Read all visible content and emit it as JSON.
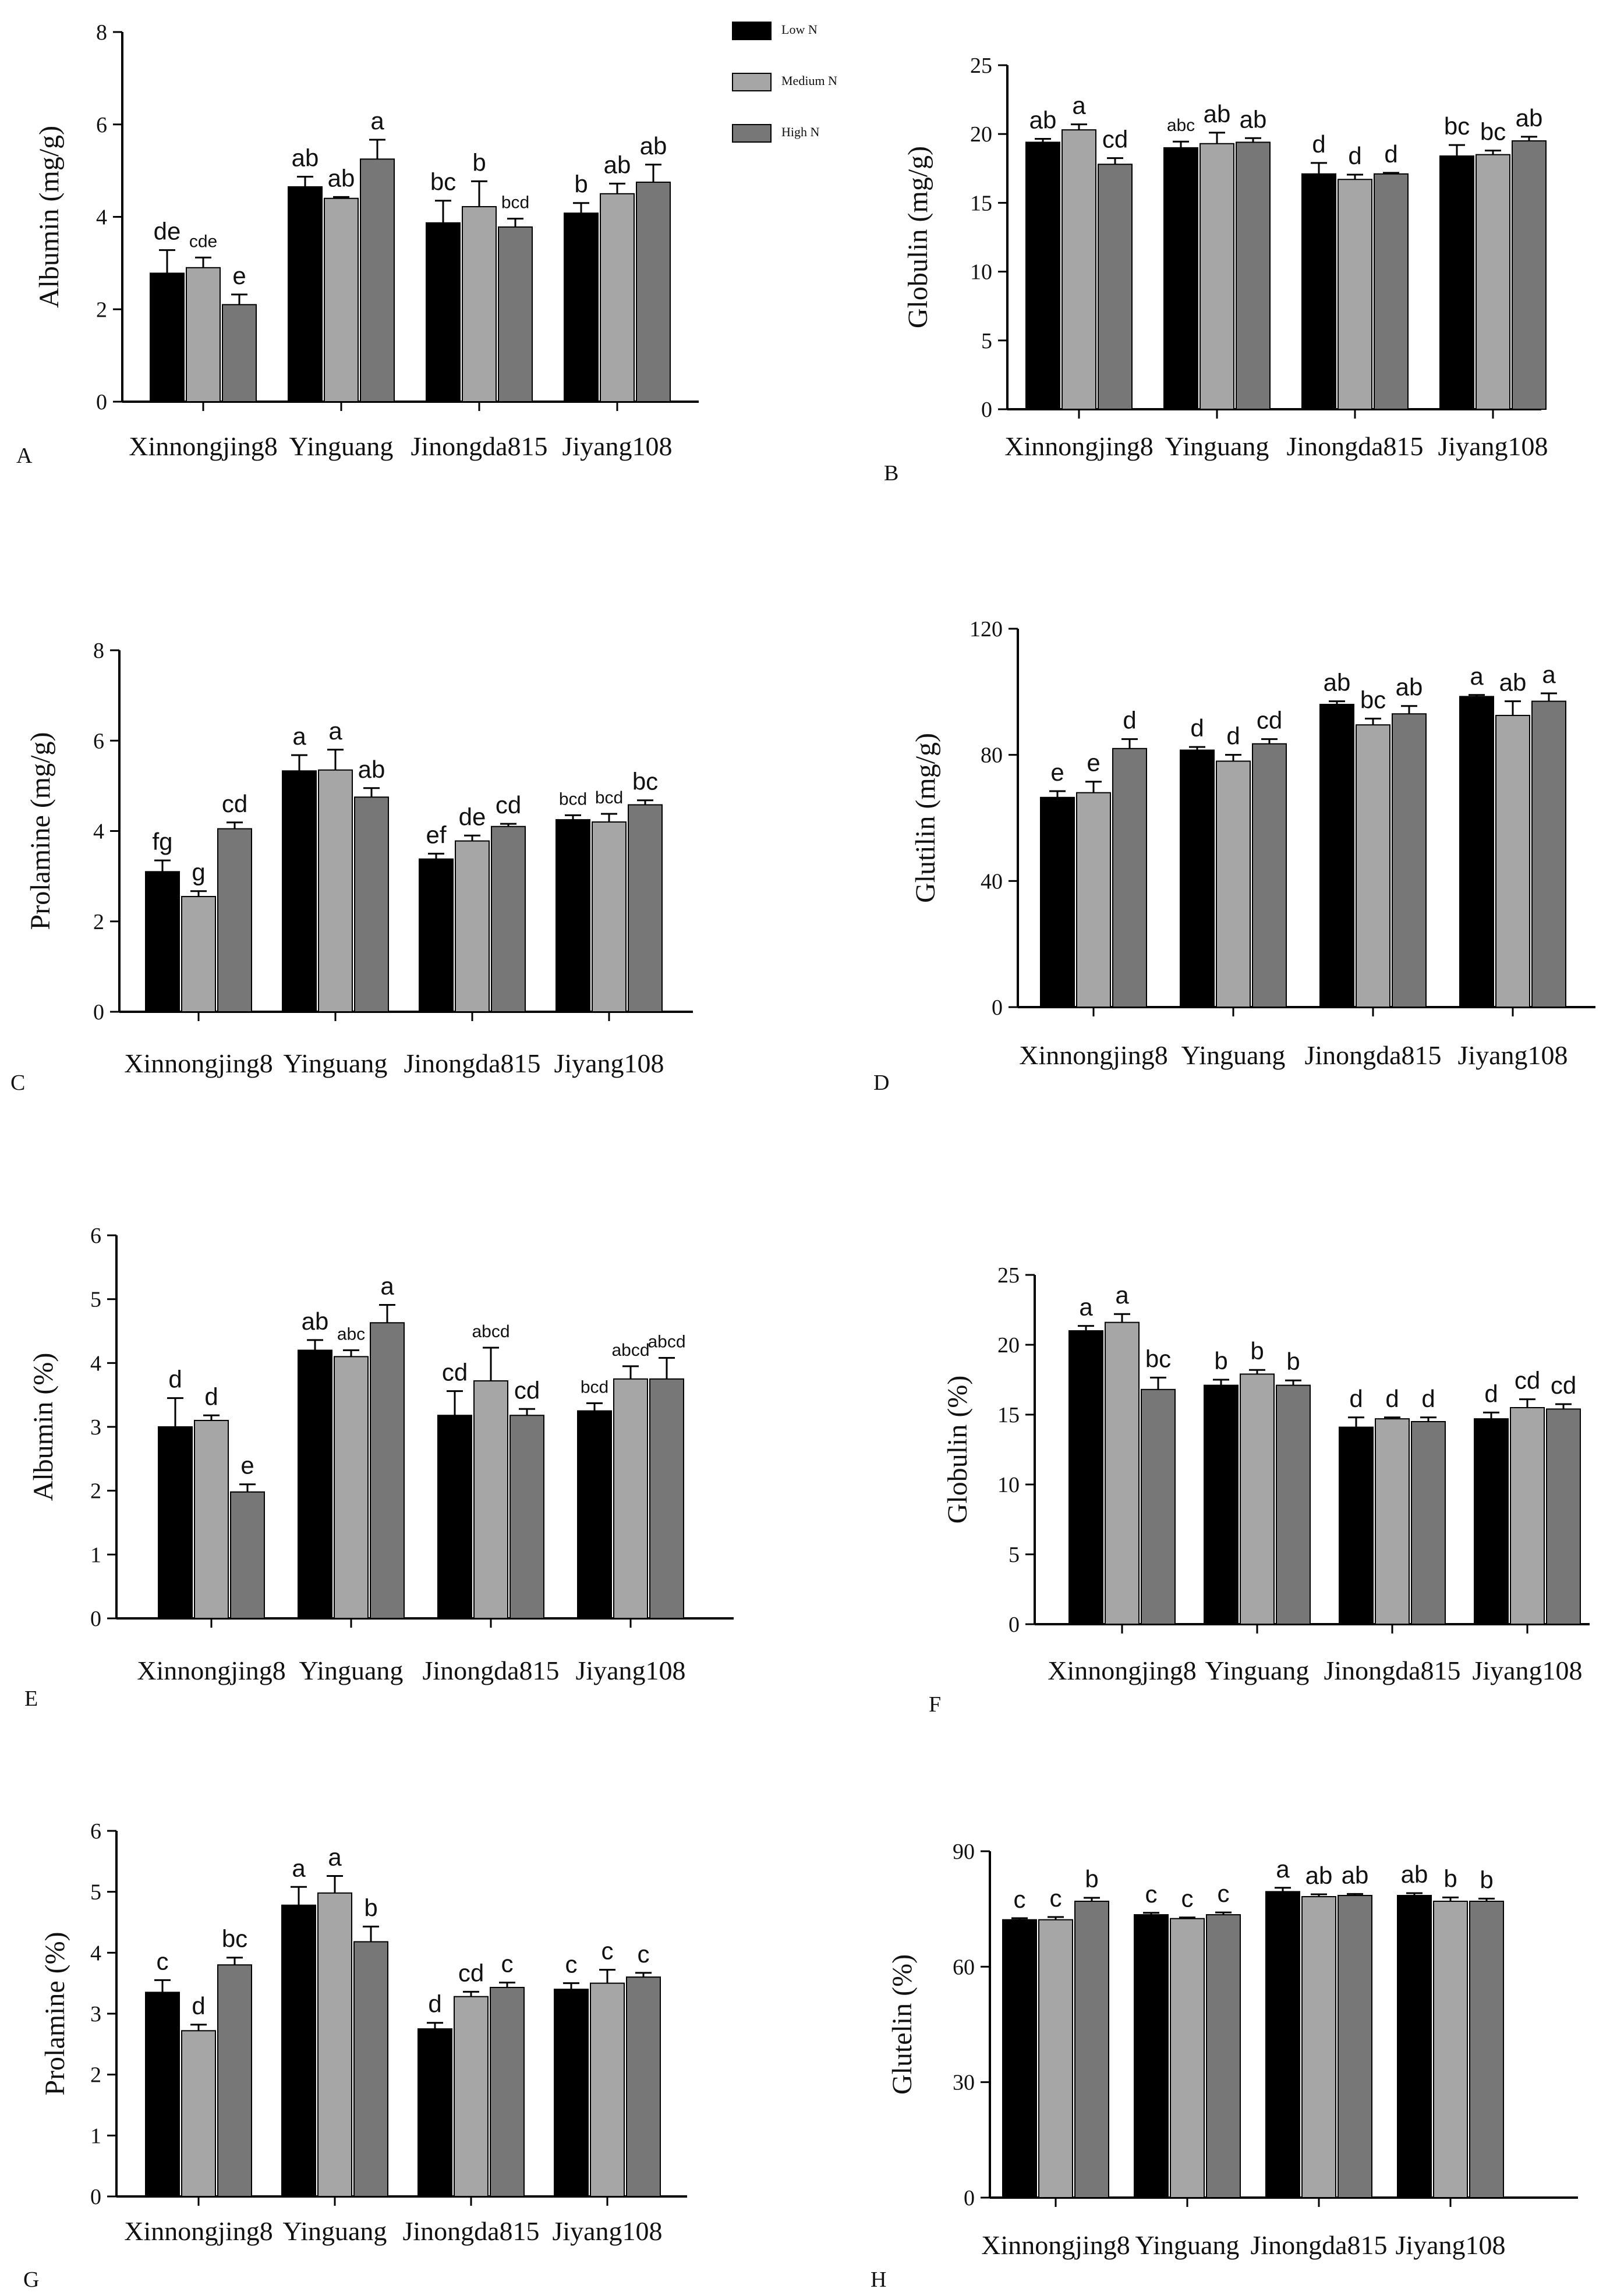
{
  "legend": {
    "items": [
      {
        "label": "Low N",
        "color": "#000000"
      },
      {
        "label": "Medium N",
        "color": "#a6a6a6"
      },
      {
        "label": "High N",
        "color": "#777777"
      }
    ]
  },
  "chart_data": [
    {
      "panel": "A",
      "type": "bar",
      "ylabel": "Albumin (mg/g)",
      "ylim": [
        0,
        8
      ],
      "yticks": [
        "0",
        "2",
        "4",
        "6",
        "8"
      ],
      "categories": [
        "Xinnongjing8",
        "Yinguang",
        "Jinongda815",
        "Jiyang108"
      ],
      "series": [
        {
          "name": "Low N",
          "values": [
            2.78,
            4.65,
            3.87,
            4.08
          ],
          "errors": [
            0.5,
            0.22,
            0.48,
            0.22
          ],
          "letters": [
            "de",
            "ab",
            "bc",
            "b"
          ]
        },
        {
          "name": "Medium N",
          "values": [
            2.9,
            4.4,
            4.22,
            4.5
          ],
          "errors": [
            0.22,
            0.03,
            0.55,
            0.22
          ],
          "letters": [
            "cde",
            "ab",
            "b",
            "ab"
          ]
        },
        {
          "name": "High N",
          "values": [
            2.1,
            5.25,
            3.78,
            4.75
          ],
          "errors": [
            0.22,
            0.42,
            0.18,
            0.38
          ],
          "letters": [
            "e",
            "a",
            "bcd",
            "ab"
          ]
        }
      ]
    },
    {
      "panel": "B",
      "type": "bar",
      "ylabel": "Globulin (mg/g)",
      "ylim": [
        0,
        25
      ],
      "yticks": [
        "0",
        "5",
        "10",
        "15",
        "20",
        "25"
      ],
      "categories": [
        "Xinnongjing8",
        "Yinguang",
        "Jinongda815",
        "Jiyang108"
      ],
      "series": [
        {
          "name": "Low N",
          "values": [
            19.4,
            19.0,
            17.1,
            18.4
          ],
          "errors": [
            0.25,
            0.45,
            0.8,
            0.8
          ],
          "letters": [
            "ab",
            "abc",
            "d",
            "bc"
          ]
        },
        {
          "name": "Medium N",
          "values": [
            20.3,
            19.3,
            16.7,
            18.5
          ],
          "errors": [
            0.4,
            0.8,
            0.35,
            0.3
          ],
          "letters": [
            "a",
            "ab",
            "d",
            "bc"
          ]
        },
        {
          "name": "High N",
          "values": [
            17.8,
            19.4,
            17.1,
            19.5
          ],
          "errors": [
            0.45,
            0.3,
            0.08,
            0.3
          ],
          "letters": [
            "cd",
            "ab",
            "d",
            "ab"
          ]
        }
      ]
    },
    {
      "panel": "C",
      "type": "bar",
      "ylabel": "Prolamine (mg/g)",
      "ylim": [
        0,
        8
      ],
      "yticks": [
        "0",
        "2",
        "4",
        "6",
        "8"
      ],
      "categories": [
        "Xinnongjing8",
        "Yinguang",
        "Jinongda815",
        "Jiyang108"
      ],
      "series": [
        {
          "name": "Low N",
          "values": [
            3.1,
            5.33,
            3.38,
            4.25
          ],
          "errors": [
            0.25,
            0.35,
            0.12,
            0.1
          ],
          "letters": [
            "fg",
            "a",
            "ef",
            "bcd"
          ]
        },
        {
          "name": "Medium N",
          "values": [
            2.55,
            5.35,
            3.78,
            4.2
          ],
          "errors": [
            0.12,
            0.45,
            0.12,
            0.18
          ],
          "letters": [
            "g",
            "a",
            "de",
            "bcd"
          ]
        },
        {
          "name": "High N",
          "values": [
            4.05,
            4.75,
            4.1,
            4.58
          ],
          "errors": [
            0.14,
            0.2,
            0.06,
            0.1
          ],
          "letters": [
            "cd",
            "ab",
            "cd",
            "bc"
          ]
        }
      ]
    },
    {
      "panel": "D",
      "type": "bar",
      "ylabel": "Glutilin (mg/g)",
      "ylim": [
        0,
        120
      ],
      "yticks": [
        "0",
        "40",
        "80",
        "120"
      ],
      "categories": [
        "Xinnongjing8",
        "Yinguang",
        "Jinongda815",
        "Jiyang108"
      ],
      "series": [
        {
          "name": "Low N",
          "values": [
            66.5,
            81.5,
            96.0,
            98.5
          ],
          "errors": [
            2.0,
            1.0,
            1.0,
            0.5
          ],
          "letters": [
            "e",
            "d",
            "ab",
            "a"
          ]
        },
        {
          "name": "Medium N",
          "values": [
            68.0,
            78.0,
            89.5,
            92.5
          ],
          "errors": [
            3.5,
            2.0,
            2.0,
            4.5
          ],
          "letters": [
            "e",
            "d",
            "bc",
            "ab"
          ]
        },
        {
          "name": "High N",
          "values": [
            82.0,
            83.5,
            93.0,
            97.0
          ],
          "errors": [
            3.0,
            1.5,
            2.5,
            2.5
          ],
          "letters": [
            "d",
            "cd",
            "ab",
            "a"
          ]
        }
      ]
    },
    {
      "panel": "E",
      "type": "bar",
      "ylabel": "Albumin (%)",
      "ylim": [
        0,
        6
      ],
      "yticks": [
        "0",
        "1",
        "2",
        "3",
        "4",
        "5",
        "6"
      ],
      "categories": [
        "Xinnongjing8",
        "Yinguang",
        "Jinongda815",
        "Jiyang108"
      ],
      "series": [
        {
          "name": "Low N",
          "values": [
            3.0,
            4.2,
            3.18,
            3.25
          ],
          "errors": [
            0.45,
            0.16,
            0.38,
            0.12
          ],
          "letters": [
            "d",
            "ab",
            "cd",
            "bcd"
          ]
        },
        {
          "name": "Medium N",
          "values": [
            3.1,
            4.1,
            3.72,
            3.75
          ],
          "errors": [
            0.08,
            0.1,
            0.52,
            0.2
          ],
          "letters": [
            "d",
            "abc",
            "abcd",
            "abcd"
          ]
        },
        {
          "name": "High N",
          "values": [
            1.98,
            4.63,
            3.18,
            3.75
          ],
          "errors": [
            0.12,
            0.28,
            0.1,
            0.33
          ],
          "letters": [
            "e",
            "a",
            "cd",
            "abcd"
          ]
        }
      ]
    },
    {
      "panel": "F",
      "type": "bar",
      "ylabel": "Globulin (%)",
      "ylim": [
        0,
        25
      ],
      "yticks": [
        "0",
        "5",
        "10",
        "15",
        "20",
        "25"
      ],
      "categories": [
        "Xinnongjing8",
        "Yinguang",
        "Jinongda815",
        "Jiyang108"
      ],
      "series": [
        {
          "name": "Low N",
          "values": [
            21.0,
            17.1,
            14.1,
            14.7
          ],
          "errors": [
            0.35,
            0.4,
            0.7,
            0.45
          ],
          "letters": [
            "a",
            "b",
            "d",
            "d"
          ]
        },
        {
          "name": "Medium N",
          "values": [
            21.6,
            17.9,
            14.7,
            15.5
          ],
          "errors": [
            0.6,
            0.3,
            0.1,
            0.6
          ],
          "letters": [
            "a",
            "b",
            "d",
            "cd"
          ]
        },
        {
          "name": "High N",
          "values": [
            16.8,
            17.1,
            14.5,
            15.4
          ],
          "errors": [
            0.85,
            0.35,
            0.3,
            0.35
          ],
          "letters": [
            "bc",
            "b",
            "d",
            "cd"
          ]
        }
      ]
    },
    {
      "panel": "G",
      "type": "bar",
      "ylabel": "Prolamine (%)",
      "ylim": [
        0,
        6
      ],
      "yticks": [
        "0",
        "1",
        "2",
        "3",
        "4",
        "5",
        "6"
      ],
      "categories": [
        "Xinnongjing8",
        "Yinguang",
        "Jinongda815",
        "Jiyang108"
      ],
      "series": [
        {
          "name": "Low N",
          "values": [
            3.35,
            4.78,
            2.75,
            3.4
          ],
          "errors": [
            0.2,
            0.3,
            0.1,
            0.1
          ],
          "letters": [
            "c",
            "a",
            "d",
            "c"
          ]
        },
        {
          "name": "Medium N",
          "values": [
            2.72,
            4.98,
            3.28,
            3.5
          ],
          "errors": [
            0.1,
            0.28,
            0.08,
            0.22
          ],
          "letters": [
            "d",
            "a",
            "cd",
            "c"
          ]
        },
        {
          "name": "High N",
          "values": [
            3.8,
            4.18,
            3.43,
            3.6
          ],
          "errors": [
            0.12,
            0.25,
            0.08,
            0.07
          ],
          "letters": [
            "bc",
            "b",
            "c",
            "c"
          ]
        }
      ]
    },
    {
      "panel": "H",
      "type": "bar",
      "ylabel": "Glutelin (%)",
      "ylim": [
        0,
        90
      ],
      "yticks": [
        "0",
        "30",
        "60",
        "90"
      ],
      "categories": [
        "Xinnongjing8",
        "Yinguang",
        "Jinongda815",
        "Jiyang108"
      ],
      "series": [
        {
          "name": "Low N",
          "values": [
            72.2,
            73.5,
            79.5,
            78.5
          ],
          "errors": [
            0.4,
            0.5,
            1.0,
            0.6
          ],
          "letters": [
            "c",
            "c",
            "a",
            "ab"
          ]
        },
        {
          "name": "Medium N",
          "values": [
            72.2,
            72.5,
            78.2,
            77.0
          ],
          "errors": [
            0.7,
            0.3,
            0.6,
            1.0
          ],
          "letters": [
            "c",
            "c",
            "ab",
            "b"
          ]
        },
        {
          "name": "High N",
          "values": [
            77.0,
            73.5,
            78.5,
            77.0
          ],
          "errors": [
            0.9,
            0.6,
            0.4,
            0.7
          ],
          "letters": [
            "b",
            "c",
            "ab",
            "b"
          ]
        }
      ]
    }
  ]
}
